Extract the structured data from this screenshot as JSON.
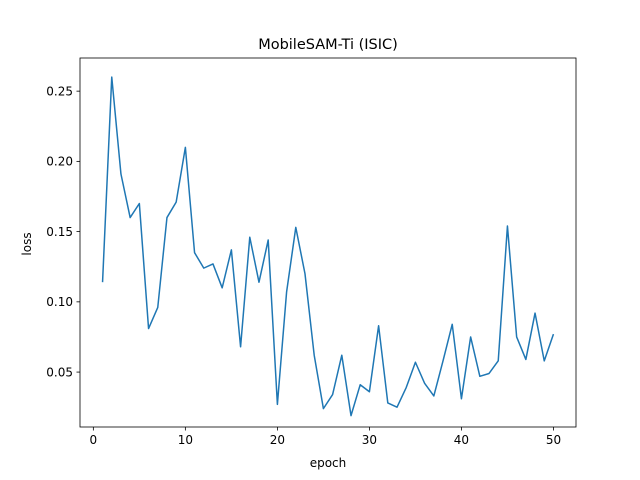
{
  "chart_data": {
    "type": "line",
    "title": "MobileSAM-Ti (ISIC)",
    "xlabel": "epoch",
    "ylabel": "loss",
    "xlim": [
      -1.45,
      52.45
    ],
    "ylim": [
      0.0109,
      0.2736
    ],
    "xticks": [
      0,
      10,
      20,
      30,
      40,
      50
    ],
    "xtick_labels": [
      "0",
      "10",
      "20",
      "30",
      "40",
      "50"
    ],
    "yticks": [
      0.05,
      0.1,
      0.15,
      0.2,
      0.25
    ],
    "ytick_labels": [
      "0.05",
      "0.10",
      "0.15",
      "0.20",
      "0.25"
    ],
    "grid": false,
    "line_color": "#1f77b4",
    "series": [
      {
        "x": [
          1,
          2,
          3,
          4,
          5,
          6,
          7,
          8,
          9,
          10,
          11,
          12,
          13,
          14,
          15,
          16,
          17,
          18,
          19,
          20,
          21,
          22,
          23,
          24,
          25,
          26,
          27,
          28,
          29,
          30,
          31,
          32,
          33,
          34,
          35,
          36,
          37,
          38,
          39,
          40,
          41,
          42,
          43,
          44,
          45,
          46,
          47,
          48,
          49,
          50
        ],
        "values": [
          0.114,
          0.26,
          0.191,
          0.16,
          0.17,
          0.081,
          0.096,
          0.16,
          0.171,
          0.21,
          0.135,
          0.124,
          0.127,
          0.11,
          0.137,
          0.068,
          0.146,
          0.114,
          0.144,
          0.027,
          0.107,
          0.153,
          0.12,
          0.062,
          0.024,
          0.034,
          0.062,
          0.019,
          0.041,
          0.036,
          0.083,
          0.028,
          0.025,
          0.039,
          0.057,
          0.042,
          0.033,
          0.058,
          0.084,
          0.031,
          0.075,
          0.047,
          0.049,
          0.058,
          0.154,
          0.075,
          0.059,
          0.092,
          0.058,
          0.077
        ]
      }
    ]
  }
}
